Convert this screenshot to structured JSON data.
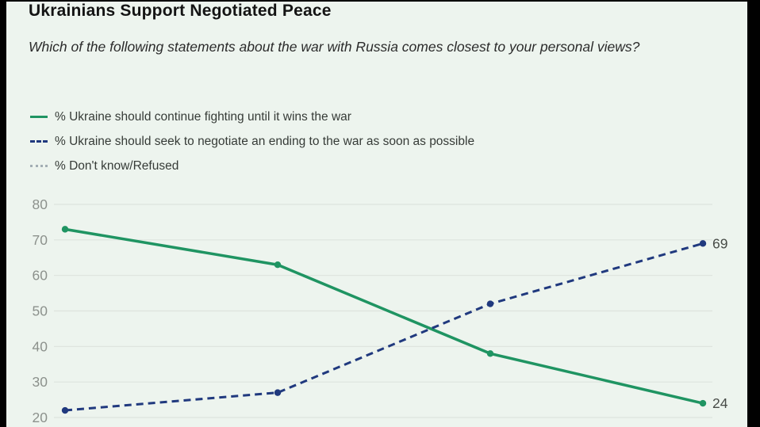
{
  "window": {
    "background_color": "#edf4ee",
    "letterbox_color": "#010101"
  },
  "header": {
    "title": "Ukrainians Support Negotiated Peace",
    "subtitle": "Which of the following statements about the war with Russia comes closest to your personal views?"
  },
  "chart_data": {
    "type": "line",
    "title": "Ukrainians Support Negotiated Peace",
    "x_axis_labels": [],
    "point_count": 4,
    "series": [
      {
        "key": "fight",
        "legend_label": "% Ukraine should continue fighting until it wins the war",
        "line_style": "solid",
        "color": "#1f9462",
        "values": [
          73,
          63,
          38,
          24
        ],
        "end_value_label": "24",
        "visible": true
      },
      {
        "key": "negotiate",
        "legend_label": "% Ukraine should seek to negotiate an ending to the war as soon as possible",
        "line_style": "dashed",
        "color": "#20397e",
        "values": [
          22,
          27,
          52,
          69
        ],
        "end_value_label": "69",
        "visible": true
      },
      {
        "key": "dont-know",
        "legend_label": "% Don't know/Refused",
        "line_style": "dotted",
        "color": "#a3aeb4",
        "values": [],
        "end_value_label": "",
        "visible": false
      }
    ],
    "xlabel": "",
    "ylabel": "",
    "ylim": [
      20,
      80
    ],
    "yticks": [
      80,
      70,
      60,
      50,
      40,
      30,
      20
    ],
    "grid": "horizontal-only",
    "legend_position": "top-left",
    "colors": {
      "gridline": "#dde3dd",
      "tick_label": "#8c918c",
      "end_label": "#474b47"
    }
  }
}
